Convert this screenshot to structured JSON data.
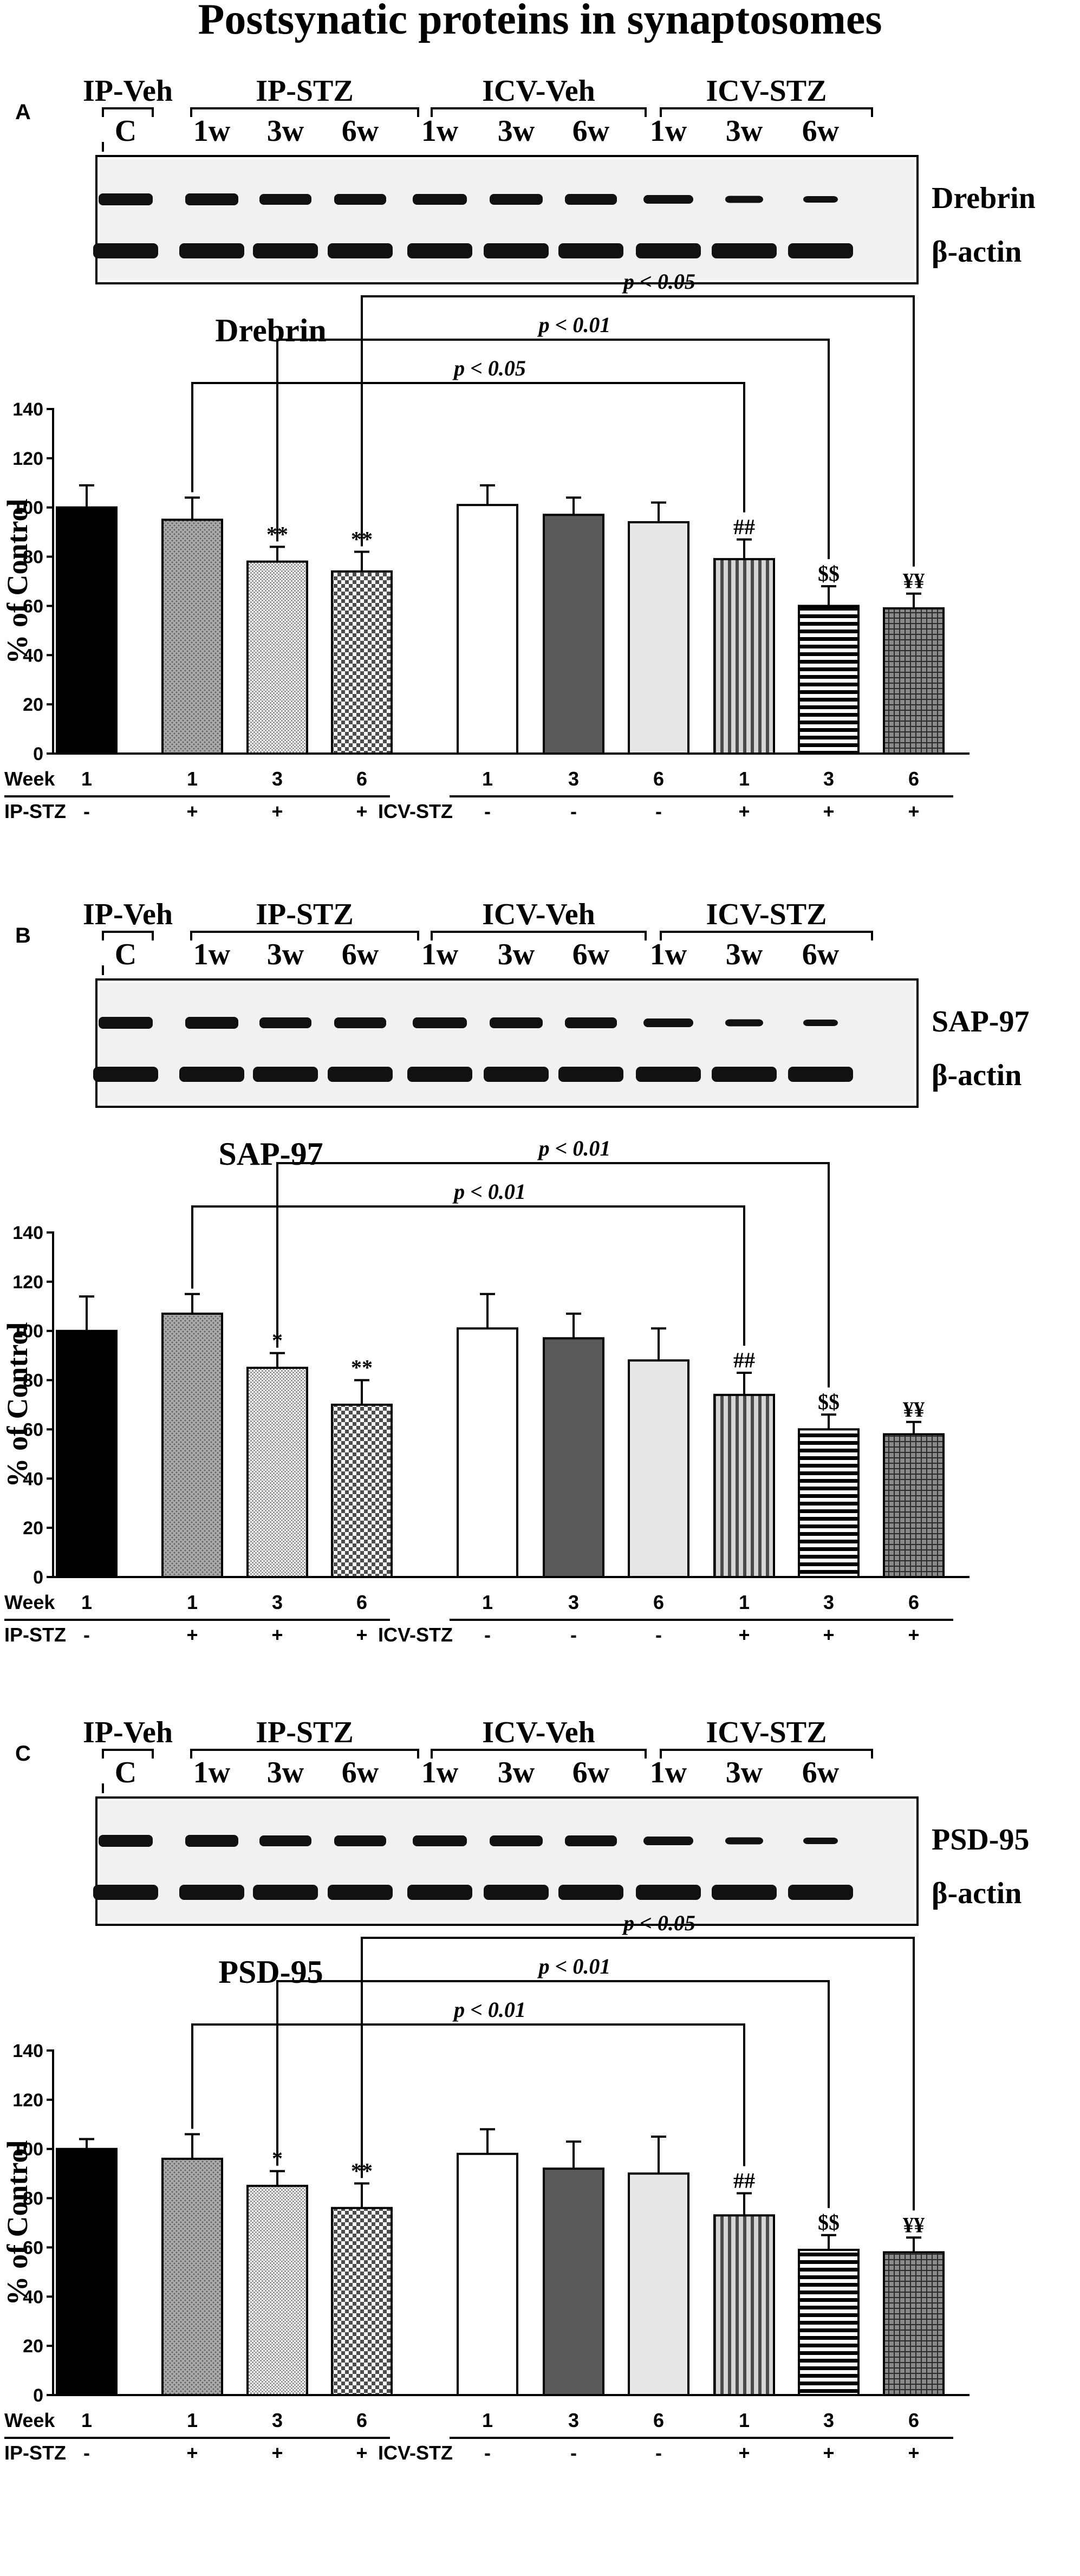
{
  "title": "Postsynatic proteins in synaptosomes",
  "blot_groups": [
    {
      "label": "IP-Veh",
      "lanes": [
        "C"
      ]
    },
    {
      "label": "IP-STZ",
      "lanes": [
        "1w",
        "3w",
        "6w"
      ]
    },
    {
      "label": "ICV-Veh",
      "lanes": [
        "1w",
        "3w",
        "6w"
      ]
    },
    {
      "label": "ICV-STZ",
      "lanes": [
        "1w",
        "3w",
        "6w"
      ]
    }
  ],
  "table_header": {
    "week": "Week",
    "ip_stz": "IP-STZ",
    "icv_stz": "ICV-STZ"
  },
  "colors": {
    "ink": "#000000",
    "veh_icv": "#ffffff",
    "icv_3w": "#5a5a5a",
    "icv_6w": "#e6e6e6"
  },
  "panels": [
    {
      "letter": "A",
      "proteins": [
        "Drebrin",
        "β-actin"
      ],
      "chart_data": {
        "type": "bar",
        "title": "Drebrin",
        "ylabel": "% of Control",
        "ylim": [
          0,
          140
        ],
        "yticks": [
          0,
          20,
          40,
          60,
          80,
          100,
          120,
          140
        ],
        "weeks": [
          "1",
          "1",
          "3",
          "6",
          "1",
          "3",
          "6",
          "1",
          "3",
          "6"
        ],
        "ip_stz": [
          "-",
          "+",
          "+",
          "+"
        ],
        "icv_stz": [
          "-",
          "-",
          "-",
          "+",
          "+",
          "+"
        ],
        "values": [
          100,
          95,
          78,
          74,
          101,
          97,
          94,
          79,
          60,
          59
        ],
        "errors": [
          9,
          9,
          6,
          8,
          8,
          7,
          8,
          8,
          8,
          6
        ],
        "annotations": [
          "",
          "",
          "**",
          "**",
          "",
          "",
          "",
          "##",
          "$$",
          "¥¥"
        ],
        "comparisons": [
          {
            "from": 1,
            "to": 7,
            "label": "p < 0.05",
            "level": 0
          },
          {
            "from": 2,
            "to": 8,
            "label": "p < 0.01",
            "level": 1
          },
          {
            "from": 3,
            "to": 9,
            "label": "p < 0.05",
            "level": 2
          }
        ]
      }
    },
    {
      "letter": "B",
      "proteins": [
        "SAP-97",
        "β-actin"
      ],
      "chart_data": {
        "type": "bar",
        "title": "SAP-97",
        "ylabel": "% of Control",
        "ylim": [
          0,
          140
        ],
        "yticks": [
          0,
          20,
          40,
          60,
          80,
          100,
          120,
          140
        ],
        "weeks": [
          "1",
          "1",
          "3",
          "6",
          "1",
          "3",
          "6",
          "1",
          "3",
          "6"
        ],
        "ip_stz": [
          "-",
          "+",
          "+",
          "+"
        ],
        "icv_stz": [
          "-",
          "-",
          "-",
          "+",
          "+",
          "+"
        ],
        "values": [
          100,
          107,
          85,
          70,
          101,
          97,
          88,
          74,
          60,
          58
        ],
        "errors": [
          14,
          8,
          6,
          10,
          14,
          10,
          13,
          9,
          6,
          5
        ],
        "annotations": [
          "",
          "",
          "*",
          "**",
          "",
          "",
          "",
          "##",
          "$$",
          "¥¥"
        ],
        "comparisons": [
          {
            "from": 1,
            "to": 7,
            "label": "p < 0.01",
            "level": 0
          },
          {
            "from": 2,
            "to": 8,
            "label": "p < 0.01",
            "level": 1
          }
        ]
      }
    },
    {
      "letter": "C",
      "proteins": [
        "PSD-95",
        "β-actin"
      ],
      "chart_data": {
        "type": "bar",
        "title": "PSD-95",
        "ylabel": "% of Control",
        "ylim": [
          0,
          140
        ],
        "yticks": [
          0,
          20,
          40,
          60,
          80,
          100,
          120,
          140
        ],
        "weeks": [
          "1",
          "1",
          "3",
          "6",
          "1",
          "3",
          "6",
          "1",
          "3",
          "6"
        ],
        "ip_stz": [
          "-",
          "+",
          "+",
          "+"
        ],
        "icv_stz": [
          "-",
          "-",
          "-",
          "+",
          "+",
          "+"
        ],
        "values": [
          100,
          96,
          85,
          76,
          98,
          92,
          90,
          73,
          59,
          58
        ],
        "errors": [
          4,
          10,
          6,
          10,
          10,
          11,
          15,
          9,
          6,
          6
        ],
        "annotations": [
          "",
          "",
          "*",
          "**",
          "",
          "",
          "",
          "##",
          "$$",
          "¥¥"
        ],
        "comparisons": [
          {
            "from": 1,
            "to": 7,
            "label": "p < 0.01",
            "level": 0
          },
          {
            "from": 2,
            "to": 8,
            "label": "p < 0.01",
            "level": 1
          },
          {
            "from": 3,
            "to": 9,
            "label": "p < 0.05",
            "level": 2
          }
        ]
      }
    }
  ]
}
